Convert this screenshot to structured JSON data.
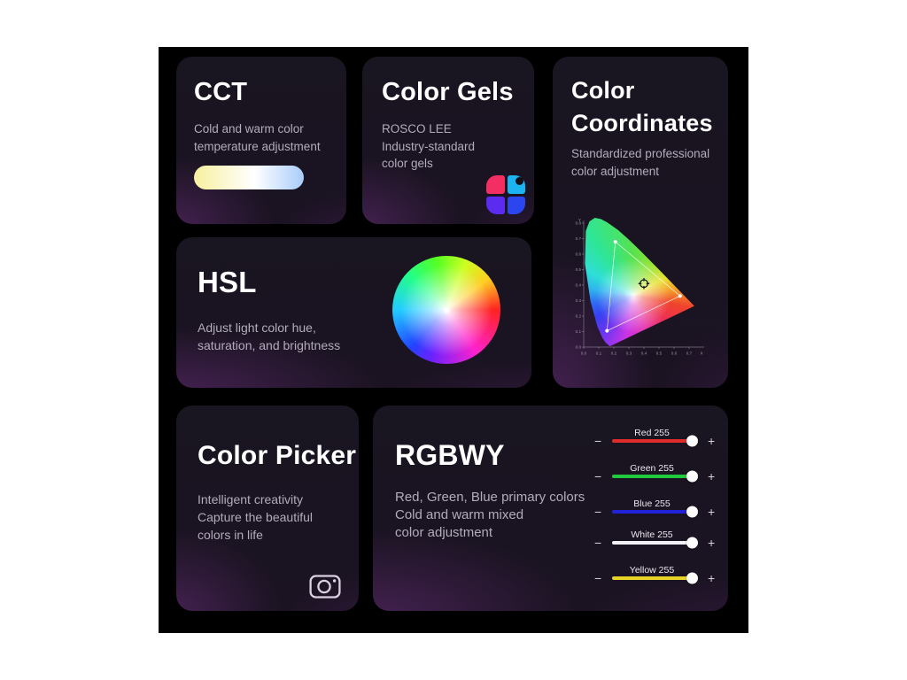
{
  "panel": {
    "background": "#000000",
    "page_background": "#ffffff"
  },
  "controls": {
    "minus": "−",
    "plus": "+"
  },
  "cards": {
    "cct": {
      "title": "CCT",
      "lines": [
        "Cold and warm color",
        "temperature adjustment"
      ],
      "gradient": {
        "warm": "#f7f09e",
        "mid": "#ffffff",
        "cool": "#a9ccfa"
      }
    },
    "gels": {
      "title": "Color Gels",
      "lines": [
        "ROSCO LEE",
        "Industry-standard",
        "color gels"
      ],
      "icon_colors": {
        "tl": "#f22e62",
        "tr": "#1bb4f0",
        "bl": "#5b2bf0",
        "br": "#2b46ee"
      }
    },
    "coords": {
      "title_lines": [
        "Color",
        "Coordinates"
      ],
      "lines": [
        "Standardized professional",
        "color adjustment"
      ],
      "axis": {
        "x_label": "X",
        "y_label": "Y",
        "x_ticks": [
          "0.0",
          "0.1",
          "0.2",
          "0.3",
          "0.4",
          "0.5",
          "0.6",
          "0.7"
        ],
        "y_ticks": [
          "0.0",
          "0.1",
          "0.2",
          "0.3",
          "0.4",
          "0.5",
          "0.6",
          "0.7",
          "0.8"
        ]
      },
      "gamut_triangle": [
        [
          0.21,
          0.68
        ],
        [
          0.64,
          0.33
        ],
        [
          0.155,
          0.105
        ]
      ],
      "marker": [
        0.4,
        0.41
      ]
    },
    "hsl": {
      "title": "HSL",
      "lines": [
        "Adjust light color hue,",
        "saturation, and brightness"
      ]
    },
    "picker": {
      "title": "Color Picker",
      "lines": [
        "Intelligent creativity",
        "Capture the beautiful",
        "colors in life"
      ]
    },
    "rgbwy": {
      "title": "RGBWY",
      "lines": [
        "Red, Green, Blue primary colors",
        "Cold and warm mixed",
        "color adjustment"
      ],
      "sliders": [
        {
          "label": "Red 255",
          "value": 255,
          "color": "#e02b2b"
        },
        {
          "label": "Green 255",
          "value": 255,
          "color": "#21c93c"
        },
        {
          "label": "Blue 255",
          "value": 255,
          "color": "#2222d8"
        },
        {
          "label": "White 255",
          "value": 255,
          "color": "#f2f2f5"
        },
        {
          "label": "Yellow 255",
          "value": 255,
          "color": "#e6d426"
        }
      ]
    }
  }
}
